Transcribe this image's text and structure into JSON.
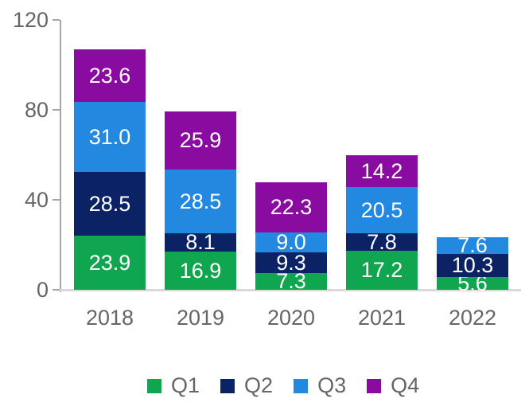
{
  "chart_data": {
    "type": "bar",
    "stacked": true,
    "title": "",
    "xlabel": "",
    "ylabel": "",
    "categories": [
      "2018",
      "2019",
      "2020",
      "2021",
      "2022"
    ],
    "series": [
      {
        "name": "Q1",
        "color": "#10A64F",
        "values": [
          23.9,
          16.9,
          7.3,
          17.2,
          5.6
        ]
      },
      {
        "name": "Q2",
        "color": "#0B2265",
        "values": [
          28.5,
          8.1,
          9.3,
          7.8,
          10.3
        ]
      },
      {
        "name": "Q3",
        "color": "#2388E0",
        "values": [
          31.0,
          28.5,
          9.0,
          20.5,
          7.6
        ]
      },
      {
        "name": "Q4",
        "color": "#8A0B9F",
        "values": [
          23.6,
          25.9,
          22.3,
          14.2,
          0
        ]
      }
    ],
    "ylim": [
      0,
      120
    ],
    "yticks": [
      0,
      40,
      80,
      120
    ],
    "grid": false,
    "legend_position": "bottom",
    "value_label_format": "one decimal, white, centered in segment"
  },
  "colors": {
    "background": "#FFFFFF",
    "axis_line": "#A6A6A6",
    "baseline": "#D9D9D9",
    "axis_text": "#666666",
    "value_label_text": "#FFFFFF"
  }
}
